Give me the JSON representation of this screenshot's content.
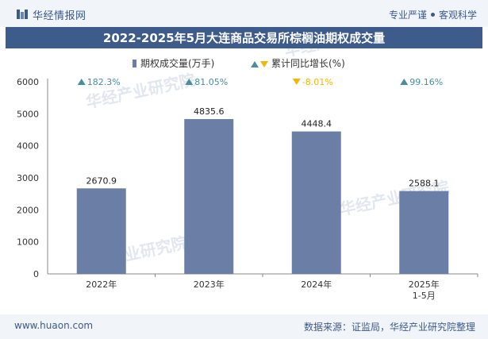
{
  "header": {
    "brand": "华经情报网",
    "slogan_left": "专业严谨",
    "slogan_right": "客观科学"
  },
  "footer": {
    "website": "www.huaon.com",
    "source": "数据来源：证监局，华经产业研究院整理"
  },
  "watermarks": [
    "华经产业研究院",
    "www.huaon.com"
  ],
  "colors": {
    "bar": "#6b7fa6",
    "up": "#4a8e9c",
    "down": "#f2b705",
    "title_bg": "#3e5c8b"
  },
  "chart_data": {
    "type": "bar",
    "title": "2022-2025年5月大连商品交易所棕榈油期权成交量",
    "categories": [
      "2022年",
      "2023年",
      "2024年",
      "2025年\n1-5月"
    ],
    "series": [
      {
        "name": "期权成交量(万手)",
        "values": [
          2670.9,
          4835.6,
          4448.4,
          2588.1
        ]
      },
      {
        "name": "累计同比增长(%)",
        "values": [
          182.3,
          81.05,
          -8.01,
          99.16
        ],
        "labels": [
          "182.3%",
          "81.05%",
          "-8.01%",
          "99.16%"
        ]
      }
    ],
    "ylim": [
      0,
      6000
    ],
    "yticks": [
      0,
      1000,
      2000,
      3000,
      4000,
      5000,
      6000
    ],
    "legend_position": "top-center"
  }
}
